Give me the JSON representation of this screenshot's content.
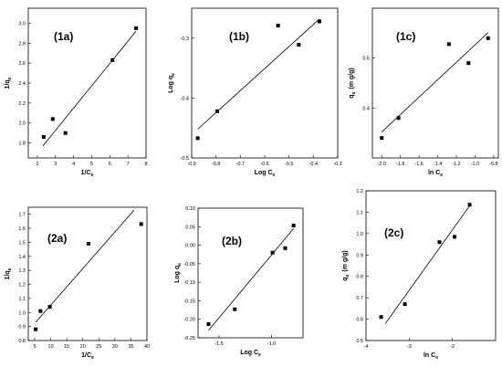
{
  "chart_data": [
    {
      "type": "scatter",
      "panel_label": "(1a)",
      "xlabel_main": "1/C",
      "xlabel_sub": "e",
      "ylabel_main": "1/q",
      "ylabel_sub": "e",
      "xlim": [
        1.5,
        8
      ],
      "ylim": [
        1.65,
        3.15
      ],
      "xticks": [
        2,
        3,
        4,
        5,
        6,
        7,
        8
      ],
      "xtick_labels": [
        "2",
        "3",
        "4",
        "5",
        "6",
        "7",
        "8"
      ],
      "yticks": [
        1.8,
        2.0,
        2.2,
        2.4,
        2.6,
        2.8,
        3.0
      ],
      "ytick_labels": [
        "1.8",
        "2.0",
        "2.2",
        "2.4",
        "2.6",
        "2.8",
        "3.0"
      ],
      "x": [
        2.35,
        2.85,
        3.55,
        6.15,
        7.45
      ],
      "y": [
        1.86,
        2.04,
        1.9,
        2.63,
        2.95
      ],
      "fit": {
        "x": [
          2.3,
          7.45
        ],
        "y": [
          1.77,
          2.92
        ]
      }
    },
    {
      "type": "scatter",
      "panel_label": "(1b)",
      "xlabel_main": "Log C",
      "xlabel_sub": "e",
      "ylabel_main": "Log q",
      "ylabel_sub": "e",
      "xlim": [
        -0.9,
        -0.3
      ],
      "ylim": [
        -0.5,
        -0.25
      ],
      "xticks": [
        -0.9,
        -0.8,
        -0.7,
        -0.6,
        -0.5,
        -0.4,
        -0.3
      ],
      "xtick_labels": [
        "-0.9",
        "-0.8",
        "-0.7",
        "-0.6",
        "-0.5",
        "-0.4",
        "-0.3"
      ],
      "yticks": [
        -0.5,
        -0.4,
        -0.3
      ],
      "ytick_labels": [
        "-0.5",
        "-0.4",
        "-0.3"
      ],
      "x": [
        -0.875,
        -0.795,
        -0.545,
        -0.46,
        -0.375
      ],
      "y": [
        -0.467,
        -0.422,
        -0.279,
        -0.311,
        -0.272
      ],
      "fit": {
        "x": [
          -0.875,
          -0.375
        ],
        "y": [
          -0.452,
          -0.268
        ]
      }
    },
    {
      "type": "scatter",
      "panel_label": "(1c)",
      "xlabel_main": "ln C",
      "xlabel_sub": "e",
      "ylabel_main": "q",
      "ylabel_sub": "e",
      "ylabel_suffix": "(m g/g)",
      "xlim": [
        -2.1,
        -0.75
      ],
      "ylim": [
        0.3,
        0.6
      ],
      "xticks": [
        -2.0,
        -1.8,
        -1.6,
        -1.4,
        -1.2,
        -1.0,
        -0.8
      ],
      "xtick_labels": [
        "-2.0",
        "-1.8",
        "-1.6",
        "-1.4",
        "-1.2",
        "-1.0",
        "-0.8"
      ],
      "yticks": [
        0.4,
        0.5
      ],
      "ytick_labels": [
        "0.4",
        "0.5"
      ],
      "x": [
        -2.0,
        -1.82,
        -1.28,
        -1.07,
        -0.86
      ],
      "y": [
        0.34,
        0.38,
        0.528,
        0.49,
        0.54
      ],
      "fit": {
        "x": [
          -2.0,
          -0.86
        ],
        "y": [
          0.352,
          0.551
        ]
      }
    },
    {
      "type": "scatter",
      "panel_label": "(2a)",
      "xlabel_main": "1/C",
      "xlabel_sub": "e",
      "ylabel_main": "1/q",
      "ylabel_sub": "e",
      "xlim": [
        3,
        40
      ],
      "ylim": [
        0.8,
        1.75
      ],
      "xticks": [
        5,
        10,
        15,
        20,
        25,
        30,
        35,
        40
      ],
      "xtick_labels": [
        "5",
        "10",
        "15",
        "20",
        "25",
        "30",
        "35",
        "40"
      ],
      "yticks": [
        0.8,
        0.9,
        1.0,
        1.1,
        1.2,
        1.3,
        1.4,
        1.5,
        1.6,
        1.7
      ],
      "ytick_labels": [
        "0.8",
        "0.9",
        "1.0",
        "1.1",
        "1.2",
        "1.3",
        "1.4",
        "1.5",
        "1.6",
        "1.7"
      ],
      "x": [
        5.3,
        6.8,
        9.7,
        21.8,
        38.2
      ],
      "y": [
        0.88,
        1.01,
        1.04,
        1.49,
        1.63
      ],
      "fit": {
        "x": [
          5.3,
          36.0
        ],
        "y": [
          0.93,
          1.73
        ]
      }
    },
    {
      "type": "scatter",
      "panel_label": "(2b)",
      "xlabel_main": "Log C",
      "xlabel_sub": "e",
      "ylabel_main": "Log q",
      "ylabel_sub": "e",
      "xlim": [
        -1.7,
        -0.7
      ],
      "ylim": [
        -0.25,
        0.1
      ],
      "xticks": [
        -1.5,
        -1.0
      ],
      "xtick_labels": [
        "-1.5",
        "-1.0"
      ],
      "yticks": [
        -0.25,
        -0.2,
        -0.15,
        -0.1,
        -0.05,
        0.0,
        0.05,
        0.1
      ],
      "ytick_labels": [
        "-0.25",
        "-0.20",
        "-0.15",
        "-0.10",
        "-0.05",
        "0.00",
        "0.05",
        "0.10"
      ],
      "x": [
        -1.6,
        -1.35,
        -0.99,
        -0.87,
        -0.79
      ],
      "y": [
        -0.213,
        -0.173,
        -0.02,
        -0.008,
        0.053
      ],
      "fit": {
        "x": [
          -1.6,
          -0.79
        ],
        "y": [
          -0.23,
          0.045
        ]
      }
    },
    {
      "type": "scatter",
      "panel_label": "(2c)",
      "xlabel_main": "ln C",
      "xlabel_sub": "e",
      "ylabel_main": "q",
      "ylabel_sub": "e",
      "ylabel_suffix": "(m g/g)",
      "xlim": [
        -4,
        -1
      ],
      "ylim": [
        0.5,
        1.2
      ],
      "xticks": [
        -4,
        -3,
        -2
      ],
      "xtick_labels": [
        "-4",
        "-3",
        "-2"
      ],
      "yticks": [
        0.5,
        0.6,
        0.7,
        0.8,
        0.9,
        1.0,
        1.1,
        1.2
      ],
      "ytick_labels": [
        "0.5",
        "0.6",
        "0.7",
        "0.8",
        "0.9",
        "1.0",
        "1.1",
        "1.2"
      ],
      "x": [
        -3.65,
        -3.1,
        -2.3,
        -1.95,
        -1.6
      ],
      "y": [
        0.61,
        0.67,
        0.96,
        0.985,
        1.135
      ],
      "fit": {
        "x": [
          -3.55,
          -1.6
        ],
        "y": [
          0.58,
          1.13
        ]
      }
    }
  ]
}
